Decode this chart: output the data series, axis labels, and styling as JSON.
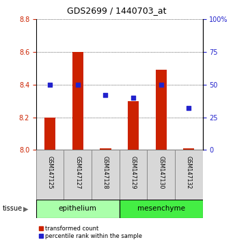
{
  "title": "GDS2699 / 1440703_at",
  "samples": [
    "GSM147125",
    "GSM147127",
    "GSM147128",
    "GSM147129",
    "GSM147130",
    "GSM147132"
  ],
  "red_values": [
    8.2,
    8.6,
    8.01,
    8.3,
    8.49,
    8.01
  ],
  "blue_values": [
    50,
    50,
    42,
    40,
    50,
    32
  ],
  "tissue_labels": [
    "epithelium",
    "mesenchyme"
  ],
  "epithelium_indices": [
    0,
    1,
    2
  ],
  "mesenchyme_indices": [
    3,
    4,
    5
  ],
  "ylim_left": [
    8.0,
    8.8
  ],
  "ylim_right": [
    0,
    100
  ],
  "yticks_left": [
    8.0,
    8.2,
    8.4,
    8.6,
    8.8
  ],
  "yticks_right": [
    0,
    25,
    50,
    75,
    100
  ],
  "right_tick_labels": [
    "0",
    "25",
    "50",
    "75",
    "100%"
  ],
  "red_color": "#cc2200",
  "blue_color": "#2222cc",
  "bar_bottom": 8.0,
  "bar_width": 0.4,
  "epi_color": "#aaffaa",
  "mes_color": "#44ee44",
  "label_bg": "#d8d8d8"
}
